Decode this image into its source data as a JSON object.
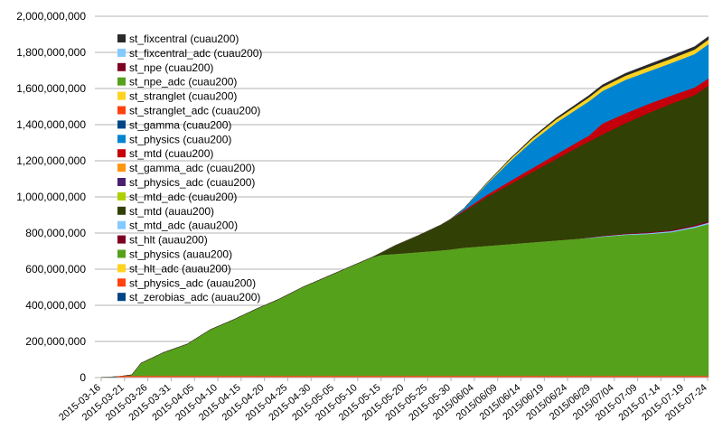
{
  "chart_data": {
    "type": "area",
    "stacked": true,
    "ylim": [
      0,
      2000000000
    ],
    "y_ticks": [
      "0",
      "200,000,000",
      "400,000,000",
      "600,000,000",
      "800,000,000",
      "1,000,000,000",
      "1,200,000,000",
      "1,400,000,000",
      "1,600,000,000",
      "1,800,000,000",
      "2,000,000,000"
    ],
    "x_ticks": [
      "2015-03-16",
      "2015-03-21",
      "2015-03-26",
      "2015-03-31",
      "2015-04-05",
      "2015-04-10",
      "2015-04-15",
      "2015-04-20",
      "2015-04-25",
      "2015-04-30",
      "2015-05-05",
      "2015-05-10",
      "2015-05-15",
      "2015-05-20",
      "2015-05-25",
      "2015-05-30",
      "2015/06/04",
      "2015/06/09",
      "2015/06/14",
      "2015/06/19",
      "2015/06/24",
      "2015/06/29",
      "2015/07/04",
      "2015-07-09",
      "2015-07-14",
      "2015-07-19",
      "2015-07-24"
    ],
    "x_start": "2015-03-16",
    "x_end": "2015-07-27",
    "grid": true,
    "legend_position": "top-left",
    "x": [
      "2015-03-16",
      "2015-03-21",
      "2015-03-24",
      "2015-03-26",
      "2015-03-31",
      "2015-04-05",
      "2015-04-10",
      "2015-04-15",
      "2015-04-20",
      "2015-04-25",
      "2015-04-30",
      "2015-05-05",
      "2015-05-10",
      "2015-05-15",
      "2015-05-17",
      "2015-05-20",
      "2015-05-25",
      "2015-05-30",
      "2015-06-01",
      "2015-06-04",
      "2015-06-09",
      "2015-06-14",
      "2015-06-19",
      "2015-06-24",
      "2015-06-29",
      "2015-07-01",
      "2015-07-04",
      "2015-07-09",
      "2015-07-14",
      "2015-07-19",
      "2015-07-24",
      "2015-07-27"
    ],
    "series": [
      {
        "name": "st_physics (auau200)",
        "color": "#56a11c",
        "values": [
          0,
          5000000,
          15000000,
          80000000,
          140000000,
          185000000,
          265000000,
          320000000,
          380000000,
          435000000,
          500000000,
          555000000,
          610000000,
          665000000,
          680000000,
          685000000,
          695000000,
          705000000,
          710000000,
          720000000,
          730000000,
          740000000,
          750000000,
          760000000,
          770000000,
          772000000,
          780000000,
          790000000,
          795000000,
          805000000,
          830000000,
          850000000
        ]
      },
      {
        "name": "st_mtd_adc (auau200)",
        "color": "#83caff",
        "values": [
          0,
          0,
          0,
          0,
          0,
          0,
          0,
          0,
          0,
          0,
          0,
          0,
          0,
          0,
          0,
          0,
          0,
          0,
          0,
          0,
          0,
          0,
          0,
          0,
          0,
          2000000,
          3000000,
          4000000,
          5000000,
          6000000,
          7000000,
          8000000
        ]
      },
      {
        "name": "st_hlt (auau200)",
        "color": "#7e0021",
        "values": [
          0,
          0,
          0,
          0,
          0,
          0,
          0,
          0,
          0,
          0,
          0,
          0,
          0,
          0,
          0,
          0,
          0,
          0,
          0,
          0,
          0,
          0,
          0,
          0,
          0,
          2000000,
          3000000,
          4000000,
          5000000,
          6000000,
          7000000,
          8000000
        ]
      },
      {
        "name": "st_mtd (auau200)",
        "color": "#314004",
        "values": [
          0,
          0,
          0,
          0,
          0,
          0,
          0,
          0,
          0,
          0,
          0,
          0,
          0,
          0,
          10000000,
          45000000,
          90000000,
          140000000,
          165000000,
          200000000,
          270000000,
          330000000,
          390000000,
          450000000,
          510000000,
          530000000,
          560000000,
          610000000,
          660000000,
          700000000,
          720000000,
          750000000
        ]
      },
      {
        "name": "st_mtd (cuau200)",
        "color": "#c5000b",
        "values": [
          0,
          0,
          0,
          0,
          0,
          0,
          0,
          0,
          0,
          0,
          0,
          0,
          0,
          0,
          0,
          0,
          0,
          0,
          0,
          6000000,
          12000000,
          18000000,
          22000000,
          26000000,
          30000000,
          32000000,
          60000000,
          55000000,
          50000000,
          45000000,
          42000000,
          40000000
        ]
      },
      {
        "name": "st_physics (cuau200)",
        "color": "#0084d1",
        "values": [
          0,
          0,
          0,
          0,
          0,
          0,
          0,
          0,
          0,
          0,
          0,
          0,
          0,
          0,
          0,
          0,
          0,
          0,
          0,
          10000000,
          60000000,
          110000000,
          150000000,
          175000000,
          185000000,
          190000000,
          180000000,
          185000000,
          180000000,
          180000000,
          185000000,
          190000000
        ]
      },
      {
        "name": "st_hlt_adc (auau200)",
        "color": "#ffd320",
        "values": [
          0,
          0,
          0,
          0,
          0,
          0,
          0,
          0,
          0,
          0,
          0,
          0,
          0,
          0,
          0,
          0,
          0,
          0,
          0,
          0,
          5000000,
          10000000,
          15000000,
          18000000,
          20000000,
          21000000,
          22000000,
          23000000,
          24000000,
          24000000,
          25000000,
          25000000
        ]
      },
      {
        "name": "st_fixcentral (cuau200)",
        "color": "#2a2a2a",
        "values": [
          0,
          0,
          0,
          0,
          0,
          0,
          0,
          0,
          0,
          0,
          0,
          0,
          0,
          0,
          0,
          0,
          0,
          0,
          0,
          0,
          2000000,
          4000000,
          6000000,
          8000000,
          10000000,
          11000000,
          12000000,
          13000000,
          14000000,
          15000000,
          16000000,
          17000000
        ]
      }
    ],
    "legend": [
      {
        "name": "st_fixcentral (cuau200)",
        "color": "#2a2a2a"
      },
      {
        "name": "st_fixcentral_adc (cuau200)",
        "color": "#83caff"
      },
      {
        "name": "st_npe (cuau200)",
        "color": "#7e0021"
      },
      {
        "name": "st_npe_adc (cuau200)",
        "color": "#56a11c"
      },
      {
        "name": "st_stranglet (cuau200)",
        "color": "#ffd320"
      },
      {
        "name": "st_stranglet_adc (cuau200)",
        "color": "#ff420e"
      },
      {
        "name": "st_gamma (cuau200)",
        "color": "#004586"
      },
      {
        "name": "st_physics (cuau200)",
        "color": "#0084d1"
      },
      {
        "name": "st_mtd (cuau200)",
        "color": "#c5000b"
      },
      {
        "name": "st_gamma_adc (cuau200)",
        "color": "#ff950e"
      },
      {
        "name": "st_physics_adc (cuau200)",
        "color": "#4b1f6f"
      },
      {
        "name": "st_mtd_adc (cuau200)",
        "color": "#aecf00"
      },
      {
        "name": "st_mtd (auau200)",
        "color": "#314004"
      },
      {
        "name": "st_mtd_adc (auau200)",
        "color": "#83caff"
      },
      {
        "name": "st_hlt (auau200)",
        "color": "#7e0021"
      },
      {
        "name": "st_physics (auau200)",
        "color": "#56a11c"
      },
      {
        "name": "st_hlt_adc (auau200)",
        "color": "#ffd320"
      },
      {
        "name": "st_physics_adc (auau200)",
        "color": "#ff420e"
      },
      {
        "name": "st_zerobias_adc (auau200)",
        "color": "#004586"
      }
    ]
  }
}
